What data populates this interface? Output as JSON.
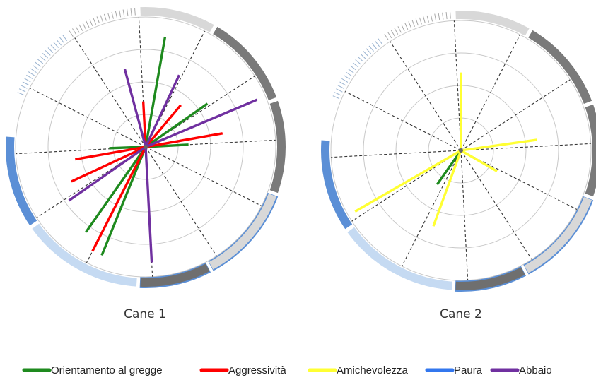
{
  "legend": [
    {
      "label": "Orientamento al gregge",
      "color": "#1e8a1e"
    },
    {
      "label": "Aggressività",
      "color": "#ff0000"
    },
    {
      "label": "Amichevolezza",
      "color": "#ffff33"
    },
    {
      "label": "Paura",
      "color": "#3377ee"
    },
    {
      "label": "Abbaio",
      "color": "#7030a0"
    }
  ],
  "chart_data": [
    {
      "type": "radial",
      "caption": "Cane 1",
      "rings": 4,
      "spokes": 12,
      "series": [
        {
          "name": "Orientamento al gregge",
          "color": "#1e8a1e",
          "rays": [
            {
              "angle": 3,
              "r": 0.33
            },
            {
              "angle": 35,
              "r": 0.58
            },
            {
              "angle": 80,
              "r": 0.86
            },
            {
              "angle": 182,
              "r": 0.28
            },
            {
              "angle": 235,
              "r": 0.8
            },
            {
              "angle": 248,
              "r": 0.9
            }
          ]
        },
        {
          "name": "Aggressività",
          "color": "#ff0000",
          "rays": [
            {
              "angle": 10,
              "r": 0.6
            },
            {
              "angle": 50,
              "r": 0.42
            },
            {
              "angle": 93,
              "r": 0.35
            },
            {
              "angle": 190,
              "r": 0.55
            },
            {
              "angle": 243,
              "r": 0.9
            },
            {
              "angle": 205,
              "r": 0.63
            }
          ]
        },
        {
          "name": "Amichevolezza",
          "color": "#ffff33",
          "rays": []
        },
        {
          "name": "Paura",
          "color": "#3377ee",
          "rays": []
        },
        {
          "name": "Abbaio",
          "color": "#7030a0",
          "rays": [
            {
              "angle": 23,
              "r": 0.93
            },
            {
              "angle": 65,
              "r": 0.61
            },
            {
              "angle": 105,
              "r": 0.62
            },
            {
              "angle": 215,
              "r": 0.72
            },
            {
              "angle": 273,
              "r": 0.89
            }
          ]
        }
      ]
    },
    {
      "type": "radial",
      "caption": "Cane 2",
      "rings": 4,
      "spokes": 12,
      "series": [
        {
          "name": "Orientamento al gregge",
          "color": "#1e8a1e",
          "rays": [
            {
              "angle": 235,
              "r": 0.32
            }
          ]
        },
        {
          "name": "Aggressività",
          "color": "#ff0000",
          "rays": []
        },
        {
          "name": "Amichevolezza",
          "color": "#ffff33",
          "rays": [
            {
              "angle": 8,
              "r": 0.59
            },
            {
              "angle": 90,
              "r": 0.6
            },
            {
              "angle": 210,
              "r": 0.94
            },
            {
              "angle": 250,
              "r": 0.62
            },
            {
              "angle": 330,
              "r": 0.32
            }
          ]
        },
        {
          "name": "Paura",
          "color": "#3377ee",
          "rays": []
        },
        {
          "name": "Abbaio",
          "color": "#7030a0",
          "rays": []
        }
      ]
    }
  ]
}
